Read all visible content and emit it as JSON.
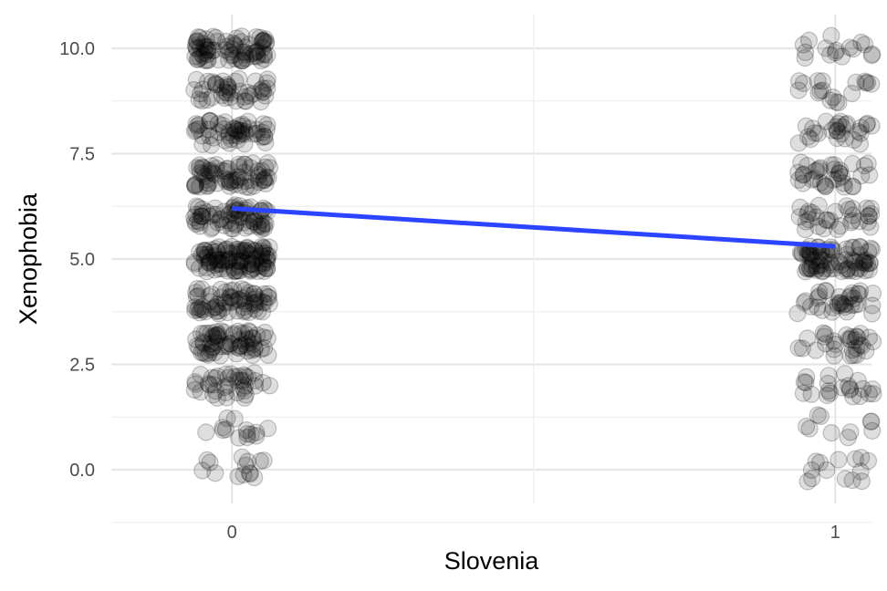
{
  "chart_data": {
    "type": "scatter",
    "title": "",
    "xlabel": "Slovenia",
    "ylabel": "Xenophobia",
    "x_ticks": [
      "0",
      "1"
    ],
    "y_ticks": [
      "0.0",
      "2.5",
      "5.0",
      "7.5",
      "10.0"
    ],
    "xlim": [
      -0.2,
      1.06
    ],
    "ylim": [
      -0.8,
      10.8
    ],
    "grid": true,
    "legend": "none",
    "jitter": true,
    "point_color": "#000000",
    "fit_line_color": "#2b44ff",
    "groups": [
      {
        "x": 0,
        "levels": [
          {
            "y": 0,
            "n": 14
          },
          {
            "y": 1,
            "n": 14
          },
          {
            "y": 2,
            "n": 40
          },
          {
            "y": 3,
            "n": 70
          },
          {
            "y": 4,
            "n": 70
          },
          {
            "y": 5,
            "n": 110
          },
          {
            "y": 6,
            "n": 70
          },
          {
            "y": 7,
            "n": 70
          },
          {
            "y": 8,
            "n": 55
          },
          {
            "y": 9,
            "n": 45
          },
          {
            "y": 10,
            "n": 80
          }
        ]
      },
      {
        "x": 1,
        "levels": [
          {
            "y": 0,
            "n": 14
          },
          {
            "y": 1,
            "n": 10
          },
          {
            "y": 2,
            "n": 22
          },
          {
            "y": 3,
            "n": 30
          },
          {
            "y": 4,
            "n": 35
          },
          {
            "y": 5,
            "n": 80
          },
          {
            "y": 6,
            "n": 32
          },
          {
            "y": 7,
            "n": 35
          },
          {
            "y": 8,
            "n": 28
          },
          {
            "y": 9,
            "n": 18
          },
          {
            "y": 10,
            "n": 16
          }
        ]
      }
    ],
    "fit_line": {
      "x": [
        0,
        1
      ],
      "y": [
        6.2,
        5.3
      ]
    }
  }
}
